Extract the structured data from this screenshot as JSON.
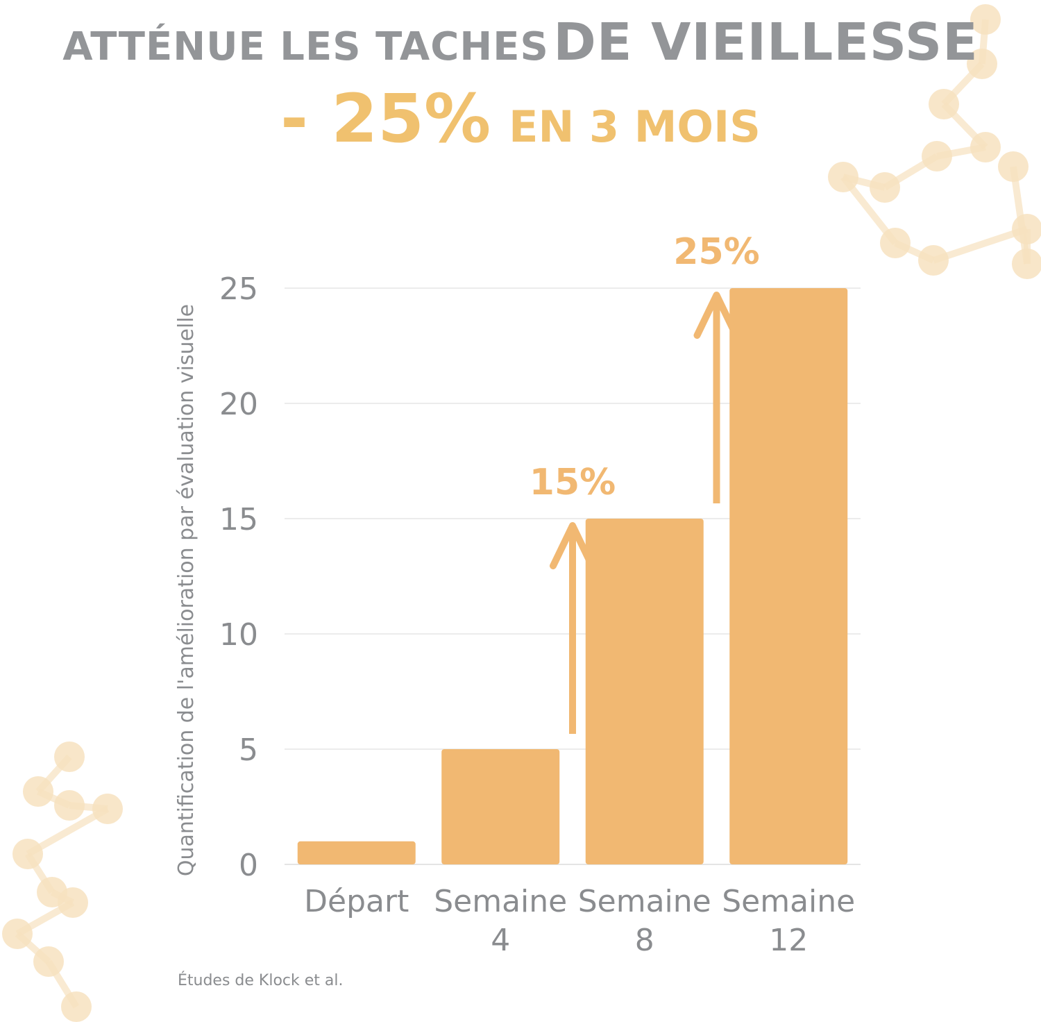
{
  "header": {
    "line1_light": "ATTÉNUE LES TACHES",
    "line1_heavy": "DE VIEILLESSE",
    "line2_big": "- 25%",
    "line2_small": "EN 3 MOIS"
  },
  "footnote": "Études de Klock et al.",
  "colors": {
    "bar": "#f1b872",
    "headline_gray": "#939598",
    "accent_gold": "#f0c16f",
    "axis_text": "#8a8c8f",
    "gridline": "#ececec",
    "molecule": "#f7e2bf"
  },
  "chart_data": {
    "type": "bar",
    "categories": [
      [
        "Départ"
      ],
      [
        "Semaine",
        "4"
      ],
      [
        "Semaine",
        "8"
      ],
      [
        "Semaine",
        "12"
      ]
    ],
    "values": [
      1,
      5,
      15,
      25
    ],
    "ylabel": "Quantification de l'amélioration par évaluation visuelle",
    "ylim": [
      0,
      25
    ],
    "yticks": [
      0,
      5,
      10,
      15,
      20,
      25
    ],
    "grid": true,
    "annotations": [
      {
        "label": "15%",
        "from_value": 5,
        "to_value": 15,
        "between": [
          1,
          2
        ]
      },
      {
        "label": "25%",
        "from_value": 15,
        "to_value": 25,
        "between": [
          2,
          3
        ]
      }
    ]
  }
}
